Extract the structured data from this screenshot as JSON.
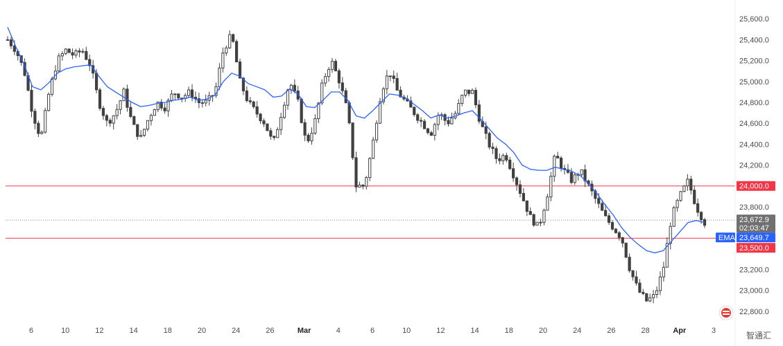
{
  "chart_data": {
    "type": "candlestick",
    "y_range": [
      22700,
      25780
    ],
    "y_ticks": [
      22800,
      23000,
      23200,
      23400,
      23600,
      23800,
      24000,
      24200,
      24400,
      24600,
      24800,
      25000,
      25200,
      25400,
      25600
    ],
    "y_tick_labels": [
      "22,800.0",
      "23,000.0",
      "23,200.0",
      "23,400.0",
      "23,600.0",
      "23,800.0",
      "24,000.0",
      "24,200.0",
      "24,400.0",
      "24,600.0",
      "24,800.0",
      "25,000.0",
      "25,200.0",
      "25,400.0",
      "25,600.0"
    ],
    "x_tick_labels": [
      "6",
      "10",
      "12",
      "14",
      "18",
      "20",
      "24",
      "26",
      "Mar",
      "4",
      "6",
      "10",
      "12",
      "14",
      "18",
      "20",
      "24",
      "26",
      "28",
      "Apr",
      "3"
    ],
    "bold_x_labels": [
      "Mar",
      "Apr"
    ],
    "close_path": [
      25400,
      25300,
      25100,
      24700,
      24450,
      24900,
      25200,
      25300,
      25250,
      25300,
      25150,
      24800,
      24600,
      24700,
      24900,
      24600,
      24450,
      24650,
      24800,
      24750,
      24900,
      24850,
      24900,
      24800,
      24800,
      24900,
      25300,
      25450,
      25000,
      24800,
      24700,
      24600,
      24400,
      24700,
      25000,
      24800,
      24400,
      24600,
      25000,
      25200,
      25000,
      24700,
      24000,
      24000,
      24400,
      24900,
      25100,
      24900,
      24800,
      24700,
      24600,
      24500,
      24700,
      24600,
      24700,
      24900,
      24900,
      24600,
      24400,
      24250,
      24300,
      24100,
      23900,
      23700,
      23600,
      23900,
      24300,
      24150,
      24050,
      24150,
      24000,
      23850,
      23700,
      23600,
      23500,
      23200,
      23000,
      22900,
      22950,
      23200,
      23700,
      23900,
      24050,
      23800,
      23650
    ],
    "ema_path": [
      25520,
      25330,
      25160,
      24950,
      24920,
      24990,
      25080,
      25120,
      25140,
      25150,
      25160,
      25050,
      24950,
      24900,
      24850,
      24800,
      24760,
      24770,
      24790,
      24800,
      24820,
      24830,
      24850,
      24820,
      24830,
      24870,
      25000,
      25080,
      25050,
      24980,
      24950,
      24920,
      24850,
      24860,
      24930,
      24880,
      24760,
      24750,
      24820,
      24900,
      24900,
      24820,
      24670,
      24650,
      24720,
      24800,
      24880,
      24870,
      24840,
      24780,
      24720,
      24650,
      24680,
      24650,
      24670,
      24700,
      24720,
      24640,
      24550,
      24460,
      24400,
      24320,
      24200,
      24160,
      24150,
      24150,
      24180,
      24160,
      24140,
      24100,
      24020,
      23930,
      23820,
      23720,
      23600,
      23510,
      23440,
      23380,
      23360,
      23380,
      23470,
      23560,
      23650,
      23670,
      23650
    ],
    "horizontal_levels": [
      {
        "value": 24000,
        "label": "24,000.0",
        "color": "#f23645"
      },
      {
        "value": 23500,
        "label": "23,500.0",
        "color": "#f23645"
      }
    ],
    "last_price": {
      "value": 23672.9,
      "label": "23,672.9",
      "countdown": "02:03:47"
    },
    "ema": {
      "value": 23649.7,
      "label": "23,649.7",
      "name": "EMA"
    },
    "colors": {
      "candle": "#404040",
      "ema": "#2962ff",
      "level": "#f23645",
      "tag_gray": "#707070"
    }
  },
  "watermark": {
    "text": "智通汇"
  }
}
